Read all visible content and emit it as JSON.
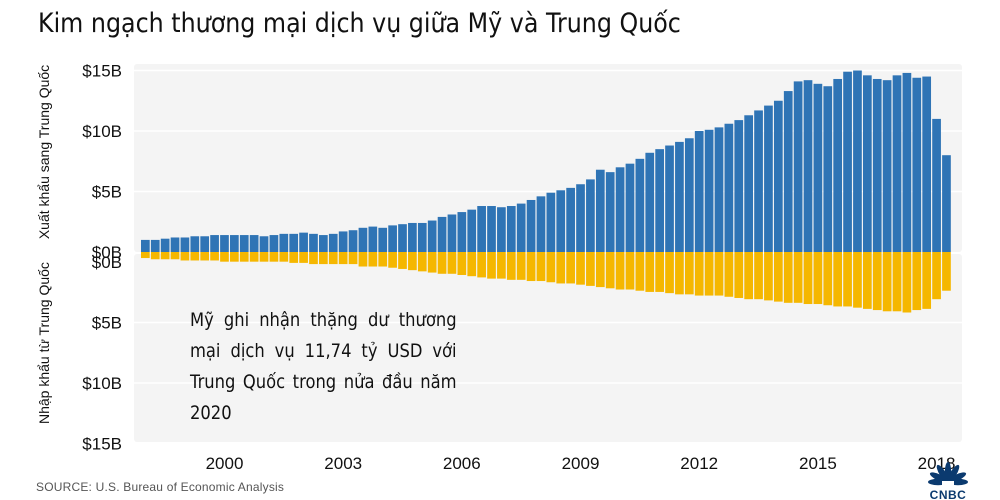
{
  "title": "Kim ngạch thương mại dịch vụ giữa Mỹ và Trung Quốc",
  "annotation": "Mỹ ghi nhận thặng dư thương mại dịch vụ 11,74 tỷ USD với Trung Quốc trong nửa đầu năm 2020",
  "source": "SOURCE: U.S. Bureau of Economic Analysis",
  "logo_text": "CNBC",
  "colors": {
    "exports": "#2f74b5",
    "imports": "#f5b700",
    "plot_bg": "#f4f4f4",
    "grid": "#ffffff"
  },
  "chart_data": {
    "type": "bar",
    "stacked_diverging": true,
    "grid": true,
    "x_tick_labels": [
      "2000",
      "2003",
      "2006",
      "2009",
      "2012",
      "2015",
      "2018"
    ],
    "upper_axis": {
      "label": "Xuất khẩu sang Trung Quốc",
      "tick_labels": [
        "$0B",
        "$5B",
        "$10B",
        "$15B"
      ],
      "ticks": [
        0,
        5,
        10,
        15
      ],
      "ylim": [
        0,
        15.5
      ]
    },
    "lower_axis": {
      "label": "Nhập khẩu từ Trung Quốc",
      "tick_labels": [
        "$0B",
        "$5B",
        "$10B",
        "$15B"
      ],
      "ticks": [
        0,
        5,
        10,
        15
      ],
      "ylim": [
        0,
        15.5
      ]
    },
    "quarters_start": "1998-Q1",
    "series": [
      {
        "name": "Xuất khẩu sang Trung Quốc",
        "values": [
          1.0,
          1.0,
          1.1,
          1.2,
          1.2,
          1.3,
          1.3,
          1.4,
          1.4,
          1.4,
          1.4,
          1.4,
          1.3,
          1.4,
          1.5,
          1.5,
          1.6,
          1.5,
          1.4,
          1.5,
          1.7,
          1.8,
          2.0,
          2.1,
          2.0,
          2.2,
          2.3,
          2.4,
          2.4,
          2.6,
          2.9,
          3.1,
          3.3,
          3.5,
          3.8,
          3.8,
          3.7,
          3.8,
          4.0,
          4.3,
          4.6,
          4.9,
          5.1,
          5.3,
          5.6,
          6.0,
          6.8,
          6.6,
          7.0,
          7.3,
          7.7,
          8.2,
          8.5,
          8.8,
          9.1,
          9.4,
          10.0,
          10.1,
          10.3,
          10.6,
          10.9,
          11.3,
          11.7,
          12.1,
          12.5,
          13.3,
          14.1,
          14.2,
          13.9,
          13.7,
          14.3,
          14.9,
          15.0,
          14.6,
          14.3,
          14.2,
          14.6,
          14.8,
          14.4,
          14.5,
          11.0,
          8.0
        ]
      },
      {
        "name": "Nhập khẩu từ Trung Quốc",
        "values": [
          0.5,
          0.6,
          0.6,
          0.6,
          0.7,
          0.7,
          0.7,
          0.7,
          0.8,
          0.8,
          0.8,
          0.8,
          0.8,
          0.8,
          0.8,
          0.9,
          0.9,
          1.0,
          1.0,
          1.0,
          1.0,
          1.0,
          1.2,
          1.2,
          1.2,
          1.3,
          1.4,
          1.5,
          1.6,
          1.7,
          1.8,
          1.8,
          1.9,
          2.0,
          2.1,
          2.2,
          2.2,
          2.3,
          2.3,
          2.4,
          2.4,
          2.5,
          2.6,
          2.6,
          2.7,
          2.8,
          2.9,
          3.0,
          3.1,
          3.1,
          3.2,
          3.3,
          3.3,
          3.4,
          3.5,
          3.5,
          3.6,
          3.6,
          3.6,
          3.7,
          3.8,
          3.9,
          3.9,
          4.0,
          4.1,
          4.2,
          4.2,
          4.3,
          4.3,
          4.4,
          4.5,
          4.5,
          4.6,
          4.7,
          4.8,
          4.9,
          4.9,
          5.0,
          4.8,
          4.7,
          3.9,
          3.2
        ]
      }
    ]
  }
}
